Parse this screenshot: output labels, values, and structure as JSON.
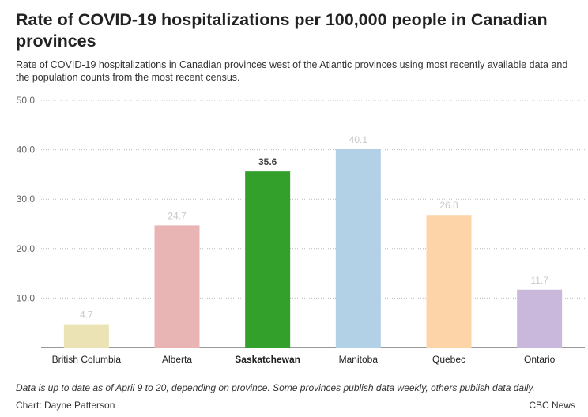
{
  "title": "Rate of COVID-19 hospitalizations per 100,000 people in Canadian provinces",
  "subtitle": "Rate of COVID-19 hospitalizations in Canadian provinces west of the Atlantic provinces using most recently available data and the population counts from the most recent census.",
  "footnote": "Data is up to date as of April 9 to 20, depending on province. Some provinces publish data weekly, others publish data daily.",
  "credit": "Chart: Dayne Patterson",
  "source": "CBC News",
  "chart_data": {
    "type": "bar",
    "title": "Rate of COVID-19 hospitalizations per 100,000 people in Canadian provinces",
    "xlabel": "",
    "ylabel": "",
    "categories": [
      "British Columbia",
      "Alberta",
      "Saskatchewan",
      "Manitoba",
      "Quebec",
      "Ontario"
    ],
    "values": [
      4.7,
      24.7,
      35.6,
      40.1,
      26.8,
      11.7
    ],
    "value_labels": [
      "4.7",
      "24.7",
      "35.6",
      "40.1",
      "26.8",
      "11.7"
    ],
    "colors": [
      "#ebe3b4",
      "#e8b4b4",
      "#33a02c",
      "#b3d1e6",
      "#fdd3a8",
      "#c9b8dc"
    ],
    "highlighted": "Saskatchewan",
    "ylim": [
      0,
      50
    ],
    "yticks": [
      10,
      20,
      30,
      40,
      50
    ],
    "ytick_labels": [
      "10.0",
      "20.0",
      "30.0",
      "40.0",
      "50.0"
    ],
    "grid": true,
    "legend": "none"
  }
}
